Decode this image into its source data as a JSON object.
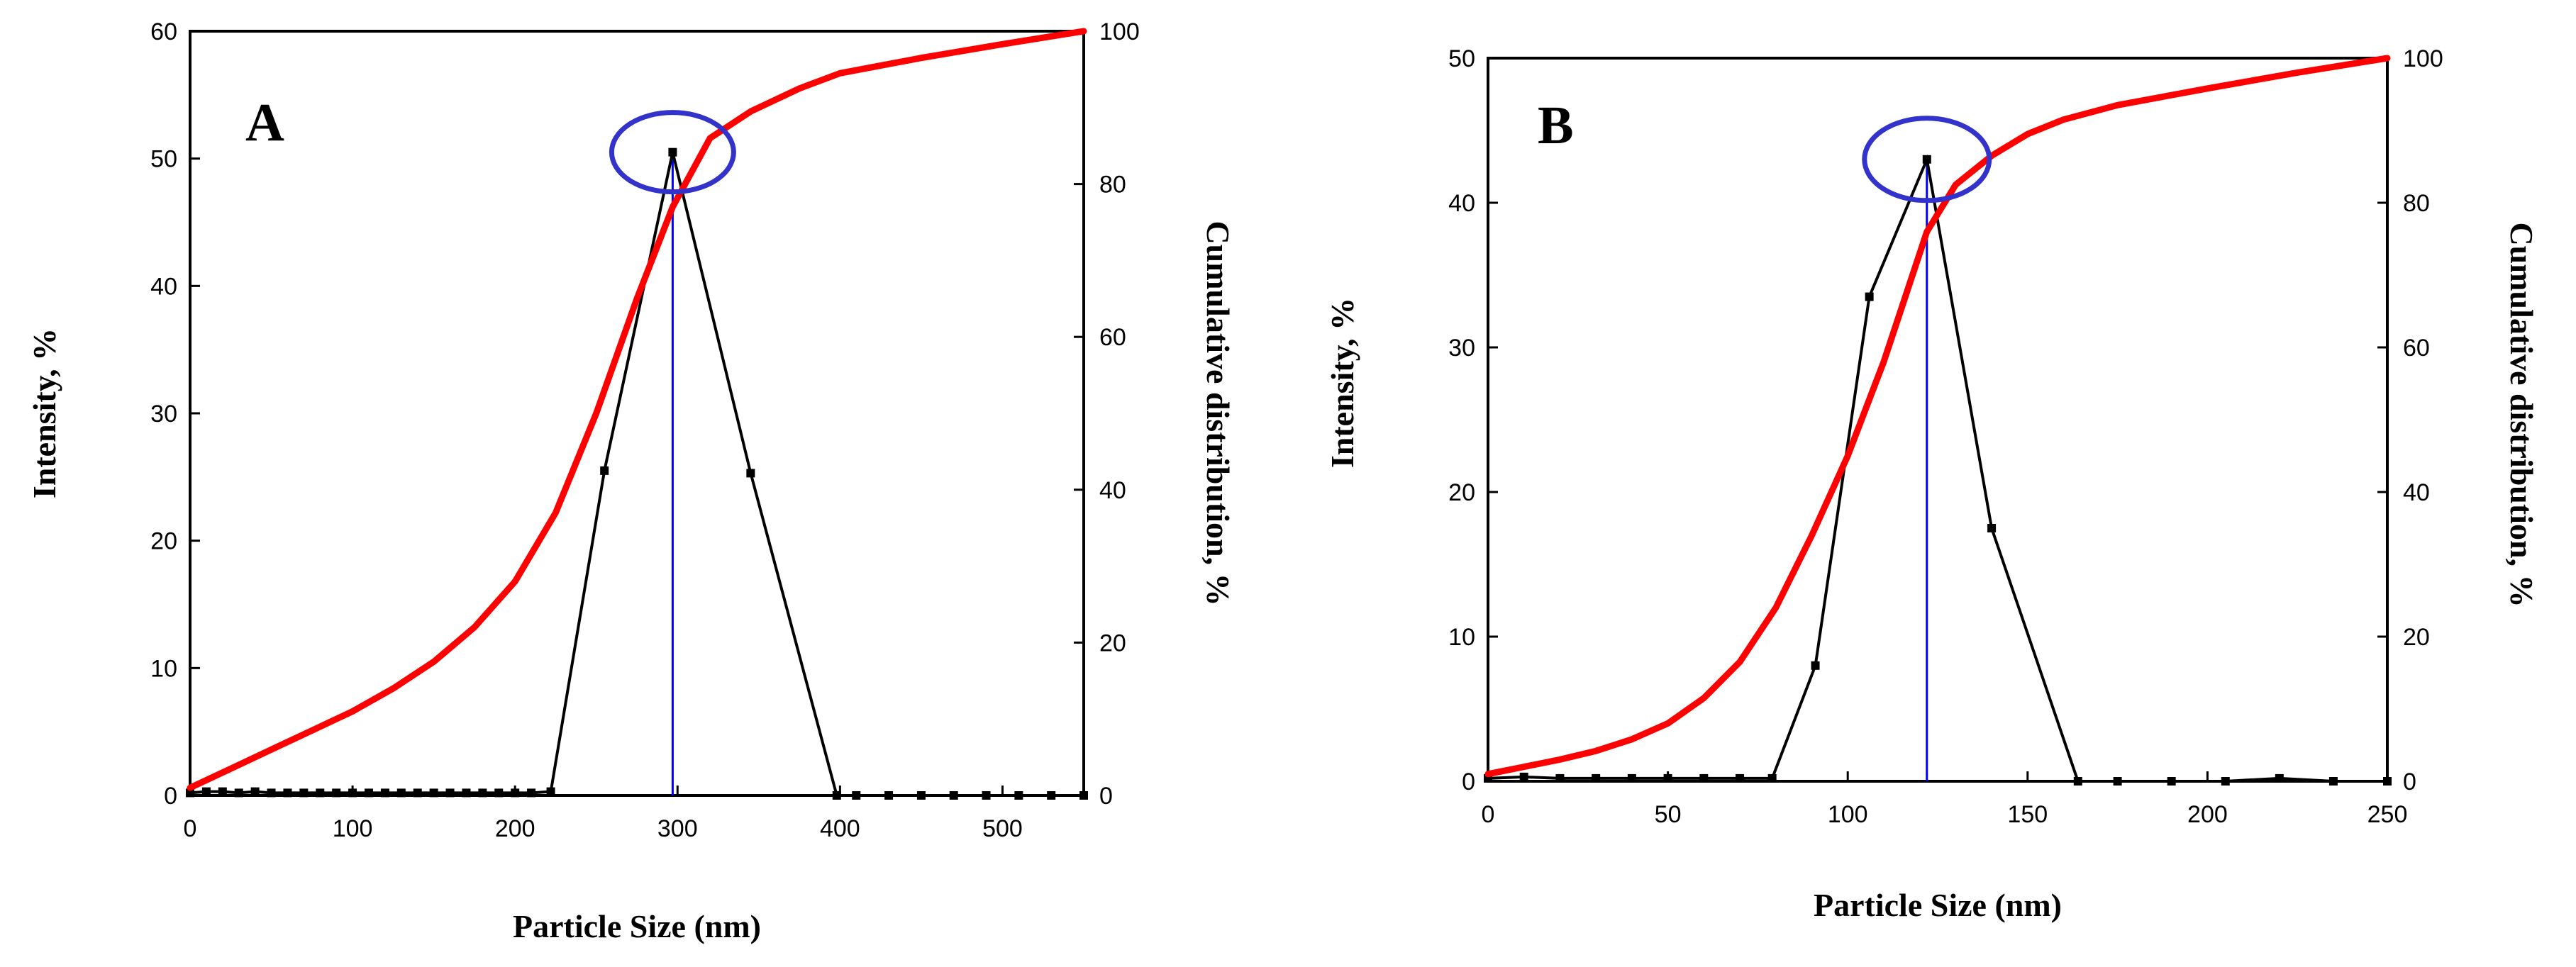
{
  "colors": {
    "intensity": "#000000",
    "cumulative": "#ff0000",
    "peak_line": "#0000ff",
    "peak_circle": "#3333cc"
  },
  "chart_data": [
    {
      "type": "line",
      "panel_label": "A",
      "xlabel": "Particle Size (nm)",
      "ylabel": "Intensity, %",
      "y2label": "Cumulative distribution, %",
      "xlim": [
        0,
        550
      ],
      "ylim": [
        0,
        60
      ],
      "y2lim": [
        0,
        100
      ],
      "xticks": [
        0,
        100,
        200,
        300,
        400,
        500
      ],
      "yticks": [
        0,
        10,
        20,
        30,
        40,
        50,
        60
      ],
      "y2ticks": [
        0,
        20,
        40,
        60,
        80,
        100
      ],
      "peak_x": 297,
      "peak_y": 50.5,
      "grid": false,
      "series": [
        {
          "name": "Intensity",
          "axis": "left",
          "x": [
            0,
            10,
            20,
            30,
            40,
            50,
            60,
            70,
            80,
            90,
            100,
            110,
            120,
            130,
            140,
            150,
            160,
            170,
            180,
            190,
            200,
            210,
            222,
            255,
            297,
            345,
            398,
            410,
            430,
            450,
            470,
            490,
            510,
            530,
            550
          ],
          "y": [
            0.2,
            0.3,
            0.3,
            0.2,
            0.3,
            0.2,
            0.2,
            0.2,
            0.2,
            0.2,
            0.2,
            0.2,
            0.2,
            0.2,
            0.2,
            0.2,
            0.2,
            0.2,
            0.2,
            0.2,
            0.2,
            0.2,
            0.3,
            25.5,
            50.5,
            25.3,
            0,
            0,
            0,
            0,
            0,
            0,
            0,
            0,
            0
          ]
        },
        {
          "name": "Cumulative",
          "axis": "right",
          "x": [
            0,
            25,
            50,
            75,
            100,
            125,
            150,
            175,
            200,
            225,
            250,
            275,
            297,
            320,
            345,
            375,
            400,
            450,
            500,
            550
          ],
          "y": [
            1,
            3.5,
            6,
            8.5,
            11,
            14,
            17.5,
            22,
            28,
            37,
            50,
            65,
            77,
            86,
            89.5,
            92.5,
            94.5,
            96.5,
            98.3,
            100
          ]
        }
      ]
    },
    {
      "type": "line",
      "panel_label": "B",
      "xlabel": "Particle Size (nm)",
      "ylabel": "Intensity, %",
      "y2label": "Cumulative distribution, %",
      "xlim": [
        0,
        250
      ],
      "ylim": [
        0,
        50
      ],
      "y2lim": [
        0,
        100
      ],
      "xticks": [
        0,
        50,
        100,
        150,
        200,
        250
      ],
      "yticks": [
        0,
        10,
        20,
        30,
        40,
        50
      ],
      "y2ticks": [
        0,
        20,
        40,
        60,
        80,
        100
      ],
      "peak_x": 122,
      "peak_y": 43,
      "grid": false,
      "series": [
        {
          "name": "Intensity",
          "axis": "left",
          "x": [
            0,
            10,
            20,
            30,
            40,
            50,
            60,
            70,
            79,
            91,
            106,
            122,
            140,
            164,
            175,
            190,
            205,
            220,
            235,
            250
          ],
          "y": [
            0.2,
            0.3,
            0.2,
            0.2,
            0.2,
            0.2,
            0.2,
            0.2,
            0.2,
            8,
            33.5,
            43,
            17.5,
            0,
            0,
            0,
            0,
            0.2,
            0,
            0
          ]
        },
        {
          "name": "Cumulative",
          "axis": "right",
          "x": [
            0,
            10,
            20,
            30,
            40,
            50,
            60,
            70,
            80,
            90,
            100,
            110,
            122,
            130,
            140,
            150,
            160,
            175,
            200,
            225,
            250
          ],
          "y": [
            1,
            2,
            3,
            4.2,
            5.8,
            8,
            11.5,
            16.5,
            24,
            34,
            45,
            58,
            76,
            82.5,
            86.5,
            89.5,
            91.5,
            93.5,
            95.8,
            98,
            100
          ]
        }
      ]
    }
  ]
}
